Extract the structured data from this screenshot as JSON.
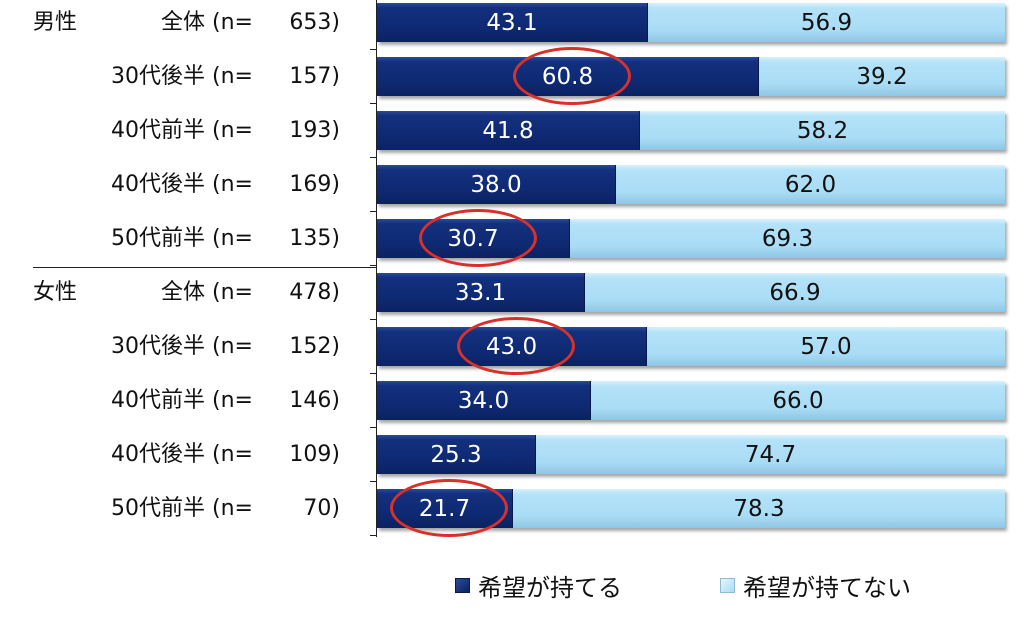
{
  "chart_data": {
    "type": "bar",
    "orientation": "horizontal",
    "stacked": "100%",
    "title": "",
    "xlabel": "",
    "ylabel": "",
    "xlim": [
      0,
      100
    ],
    "categories": [
      "男性 全体 (n= 653)",
      "30代後半 (n= 157)",
      "40代前半 (n= 193)",
      "40代後半 (n= 169)",
      "50代前半 (n= 135)",
      "女性 全体 (n= 478)",
      "30代後半 (n= 152)",
      "40代前半 (n= 146)",
      "40代後半 (n= 109)",
      "50代前半 (n= 70)"
    ],
    "series": [
      {
        "name": "希望が持てる",
        "color": "#0f2a74",
        "values": [
          43.1,
          60.8,
          41.8,
          38.0,
          30.7,
          33.1,
          43.0,
          34.0,
          25.3,
          21.7
        ]
      },
      {
        "name": "希望が持てない",
        "color": "#a9dcf5",
        "values": [
          56.9,
          39.2,
          58.2,
          62.0,
          69.3,
          66.9,
          57.0,
          66.0,
          74.7,
          78.3
        ]
      }
    ],
    "legend_position": "bottom",
    "grid": false,
    "annotations": [
      "red ellipses highlight 60.8, 30.7, 43.0, 21.7"
    ]
  },
  "rows": [
    {
      "group": "男性",
      "sub": "全体",
      "n_prefix": "(n=",
      "n": "653)",
      "dark": "43.1",
      "light": "56.9",
      "dark_pct": 43.1
    },
    {
      "group": "",
      "sub": "30代後半",
      "n_prefix": "(n=",
      "n": "157)",
      "dark": "60.8",
      "light": "39.2",
      "dark_pct": 60.8
    },
    {
      "group": "",
      "sub": "40代前半",
      "n_prefix": "(n=",
      "n": "193)",
      "dark": "41.8",
      "light": "58.2",
      "dark_pct": 41.8
    },
    {
      "group": "",
      "sub": "40代後半",
      "n_prefix": "(n=",
      "n": "169)",
      "dark": "38.0",
      "light": "62.0",
      "dark_pct": 38.0
    },
    {
      "group": "",
      "sub": "50代前半",
      "n_prefix": "(n=",
      "n": "135)",
      "dark": "30.7",
      "light": "69.3",
      "dark_pct": 30.7
    },
    {
      "group": "女性",
      "sub": "全体",
      "n_prefix": "(n=",
      "n": "478)",
      "dark": "33.1",
      "light": "66.9",
      "dark_pct": 33.1
    },
    {
      "group": "",
      "sub": "30代後半",
      "n_prefix": "(n=",
      "n": "152)",
      "dark": "43.0",
      "light": "57.0",
      "dark_pct": 43.0
    },
    {
      "group": "",
      "sub": "40代前半",
      "n_prefix": "(n=",
      "n": "146)",
      "dark": "34.0",
      "light": "66.0",
      "dark_pct": 34.0
    },
    {
      "group": "",
      "sub": "40代後半",
      "n_prefix": "(n=",
      "n": "109)",
      "dark": "25.3",
      "light": "74.7",
      "dark_pct": 25.3
    },
    {
      "group": "",
      "sub": "50代前半",
      "n_prefix": "(n=",
      "n": "70)",
      "dark": "21.7",
      "light": "78.3",
      "dark_pct": 21.7
    }
  ],
  "highlights": [
    1,
    4,
    6,
    9
  ],
  "legend": {
    "items": [
      {
        "label": "希望が持てる",
        "color": "#0f2a74"
      },
      {
        "label": "希望が持てない",
        "color": "#a9dcf5"
      }
    ]
  },
  "colors": {
    "dark": "#0f2a74",
    "light": "#a9dcf5",
    "highlight": "#d9302a"
  }
}
